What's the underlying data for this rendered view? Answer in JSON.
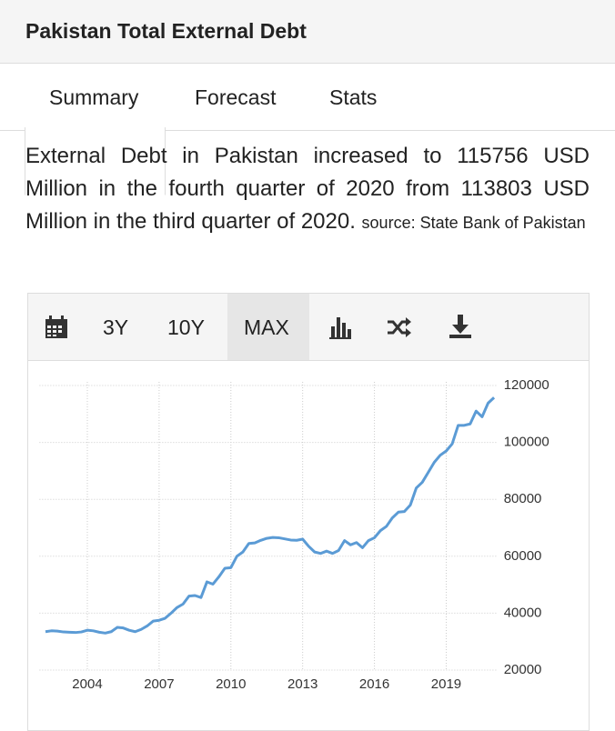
{
  "header": {
    "title": "Pakistan Total External Debt"
  },
  "tabs": [
    "Summary",
    "Forecast",
    "Stats"
  ],
  "description": {
    "text": "External Debt in Pakistan increased to 115756 USD Million in the fourth quarter of 2020 from 113803 USD Million in the third quarter of 2020.",
    "source": "source: State Bank of Pakistan"
  },
  "toolbar": [
    "3Y",
    "10Y",
    "MAX"
  ],
  "chart_data": {
    "type": "line",
    "x": [
      2002.25,
      2002.5,
      2002.75,
      2003,
      2003.25,
      2003.5,
      2003.75,
      2004,
      2004.25,
      2004.5,
      2004.75,
      2005,
      2005.25,
      2005.5,
      2005.75,
      2006,
      2006.25,
      2006.5,
      2006.75,
      2007,
      2007.25,
      2007.5,
      2007.75,
      2008,
      2008.25,
      2008.5,
      2008.75,
      2009,
      2009.25,
      2009.5,
      2009.75,
      2010,
      2010.25,
      2010.5,
      2010.75,
      2011,
      2011.25,
      2011.5,
      2011.75,
      2012,
      2012.25,
      2012.5,
      2012.75,
      2013,
      2013.25,
      2013.5,
      2013.75,
      2014,
      2014.25,
      2014.5,
      2014.75,
      2015,
      2015.25,
      2015.5,
      2015.75,
      2016,
      2016.25,
      2016.5,
      2016.75,
      2017,
      2017.25,
      2017.5,
      2017.75,
      2018,
      2018.25,
      2018.5,
      2018.75,
      2019,
      2019.25,
      2019.5,
      2019.75,
      2020,
      2020.25,
      2020.5,
      2020.75,
      2021
    ],
    "series": [
      {
        "name": "External Debt",
        "color": "#5b9bd5",
        "values": [
          33500,
          33800,
          33700,
          33400,
          33300,
          33200,
          33400,
          34000,
          33800,
          33300,
          33000,
          33500,
          35000,
          34800,
          34000,
          33500,
          34300,
          35500,
          37200,
          37500,
          38200,
          40000,
          42000,
          43200,
          46000,
          46200,
          45500,
          51000,
          50200,
          52800,
          55800,
          56000,
          60000,
          61500,
          64500,
          64700,
          65600,
          66300,
          66600,
          66500,
          66100,
          65700,
          65600,
          66000,
          63500,
          61500,
          61000,
          61800,
          61000,
          62000,
          65500,
          64000,
          64800,
          63000,
          65500,
          66500,
          69000,
          70500,
          73500,
          75500,
          75700,
          78000,
          84000,
          86000,
          89500,
          93000,
          95500,
          97000,
          99500,
          106000,
          106000,
          106500,
          111000,
          109000,
          113803,
          115756
        ]
      }
    ],
    "xlim": [
      2002,
      2021.1
    ],
    "xticks": [
      2004,
      2007,
      2010,
      2013,
      2016,
      2019
    ],
    "ylim": [
      20000,
      120000
    ],
    "yticks": [
      20000,
      40000,
      60000,
      80000,
      100000,
      120000
    ],
    "grid": true
  }
}
